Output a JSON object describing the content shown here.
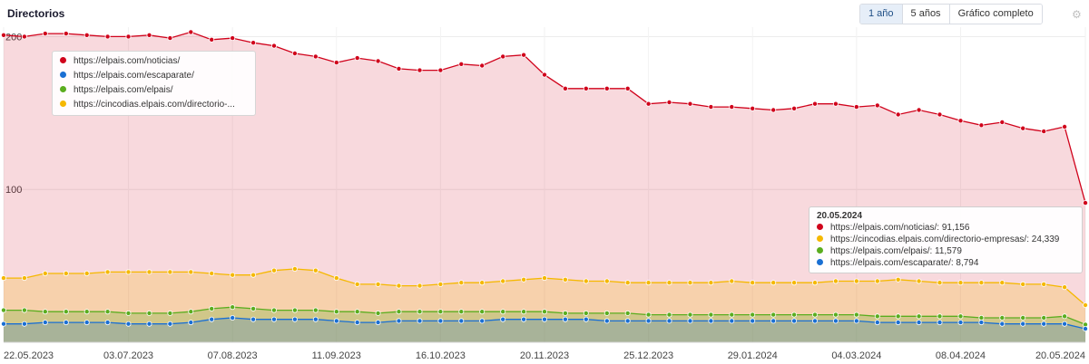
{
  "header": {
    "title": "Directorios",
    "buttons": [
      "1 año",
      "5 años",
      "Gráfico completo"
    ],
    "active_button": "1 año",
    "settings_icon": "gear-icon"
  },
  "legend": [
    {
      "label": "https://elpais.com/noticias/",
      "color": "#d0021b"
    },
    {
      "label": "https://elpais.com/escaparate/",
      "color": "#1a6fd3"
    },
    {
      "label": "https://elpais.com/elpais/",
      "color": "#5bad1f"
    },
    {
      "label": "https://cincodias.elpais.com/directorio-...",
      "color": "#f5b800"
    }
  ],
  "tooltip": {
    "date": "20.05.2024",
    "rows": [
      {
        "text": "https://elpais.com/noticias/: 91,156",
        "color": "#d0021b"
      },
      {
        "text": "https://cincodias.elpais.com/directorio-empresas/: 24,339",
        "color": "#f5b800"
      },
      {
        "text": "https://elpais.com/elpais/: 11,579",
        "color": "#5bad1f"
      },
      {
        "text": "https://elpais.com/escaparate/: 8,794",
        "color": "#1a6fd3"
      }
    ]
  },
  "chart_data": {
    "type": "area",
    "title": "Directorios",
    "ylim": [
      0,
      200
    ],
    "y_ticks": [
      "200",
      "100"
    ],
    "x_tick_labels": [
      "22.05.2023",
      "03.07.2023",
      "07.08.2023",
      "11.09.2023",
      "16.10.2023",
      "20.11.2023",
      "25.12.2023",
      "29.01.2024",
      "04.03.2024",
      "08.04.2024",
      "20.05.2024"
    ],
    "x_tick_indices": [
      0,
      6,
      11,
      16,
      21,
      26,
      31,
      36,
      41,
      46,
      52
    ],
    "grid": true,
    "stacked": false,
    "series": [
      {
        "name": "https://elpais.com/noticias/",
        "color": "#d0021b",
        "values": [
          201,
          200,
          202,
          202,
          201,
          200,
          200,
          201,
          199,
          203,
          198,
          199,
          196,
          194,
          189,
          187,
          183,
          186,
          184,
          179,
          178,
          178,
          182,
          181,
          187,
          188,
          175,
          166,
          166,
          166,
          166,
          156,
          157,
          156,
          154,
          154,
          153,
          152,
          153,
          156,
          156,
          154,
          155,
          149,
          152,
          149,
          145,
          142,
          144,
          140,
          138,
          141,
          91.2
        ]
      },
      {
        "name": "https://cincodias.elpais.com/directorio-empresas/",
        "color": "#f5b800",
        "values": [
          42,
          42,
          45,
          45,
          45,
          46,
          46,
          46,
          46,
          46,
          45,
          44,
          44,
          47,
          48,
          47,
          42,
          38,
          38,
          37,
          37,
          38,
          39,
          39,
          40,
          41,
          42,
          41,
          40,
          40,
          39,
          39,
          39,
          39,
          39,
          40,
          39,
          39,
          39,
          39,
          40,
          40,
          40,
          41,
          40,
          39,
          39,
          39,
          39,
          38,
          38,
          36,
          24.3
        ]
      },
      {
        "name": "https://elpais.com/elpais/",
        "color": "#5bad1f",
        "values": [
          21,
          21,
          20,
          20,
          20,
          20,
          19,
          19,
          19,
          20,
          22,
          23,
          22,
          21,
          21,
          21,
          20,
          20,
          19,
          20,
          20,
          20,
          20,
          20,
          20,
          20,
          20,
          19,
          19,
          19,
          19,
          18,
          18,
          18,
          18,
          18,
          18,
          18,
          18,
          18,
          18,
          18,
          17,
          17,
          17,
          17,
          17,
          16,
          16,
          16,
          16,
          17,
          11.6
        ]
      },
      {
        "name": "https://elpais.com/escaparate/",
        "color": "#1a6fd3",
        "values": [
          12,
          12,
          13,
          13,
          13,
          13,
          12,
          12,
          12,
          13,
          15,
          16,
          15,
          15,
          15,
          15,
          14,
          13,
          13,
          14,
          14,
          14,
          14,
          14,
          15,
          15,
          15,
          15,
          15,
          14,
          14,
          14,
          14,
          14,
          14,
          14,
          14,
          14,
          14,
          14,
          14,
          14,
          13,
          13,
          13,
          13,
          13,
          13,
          12,
          12,
          12,
          12,
          8.8
        ]
      }
    ]
  }
}
